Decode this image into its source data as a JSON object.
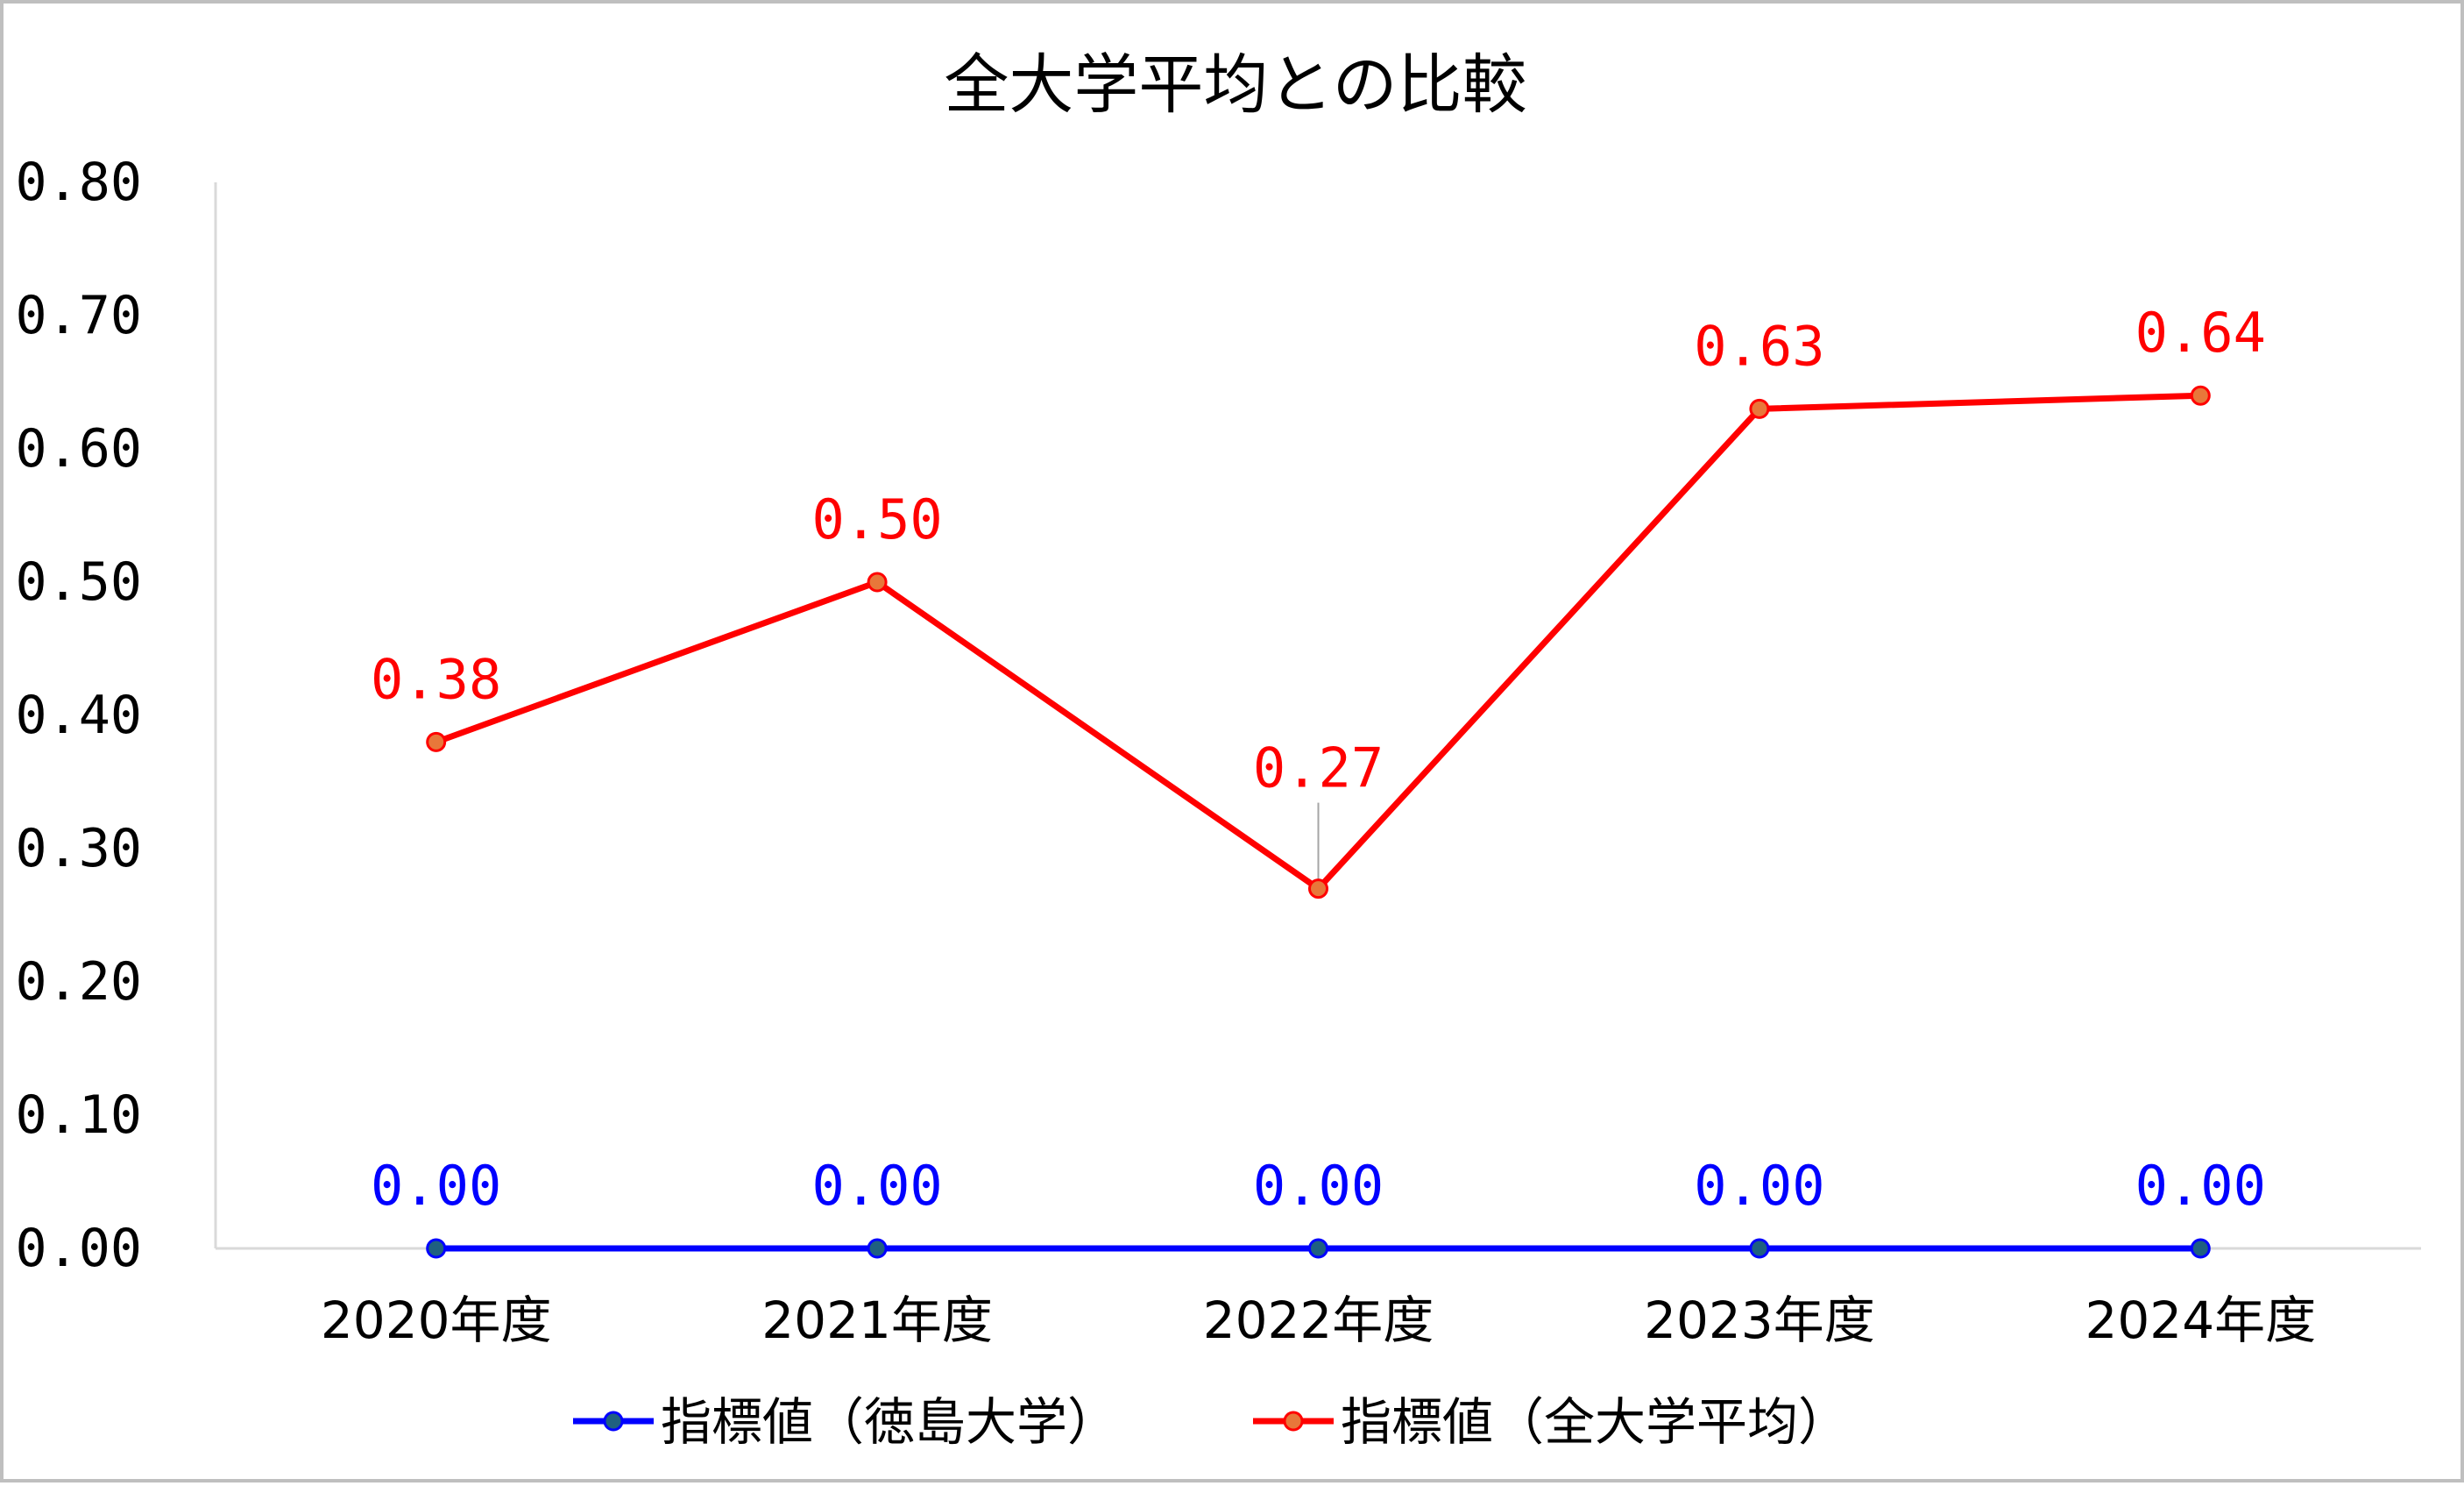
{
  "chart_data": {
    "type": "line",
    "title": "全大学平均との比較",
    "xlabel": "",
    "ylabel": "",
    "categories": [
      "2020年度",
      "2021年度",
      "2022年度",
      "2023年度",
      "2024年度"
    ],
    "series": [
      {
        "name": "指標値（徳島大学）",
        "values": [
          0.0,
          0.0,
          0.0,
          0.0,
          0.0
        ],
        "labels": [
          "0.00",
          "0.00",
          "0.00",
          "0.00",
          "0.00"
        ],
        "line_color": "#0000ff",
        "marker_fill": "#1f6080",
        "marker_stroke": "#0000ff",
        "label_color": "#0000ff"
      },
      {
        "name": "指標値（全大学平均）",
        "values": [
          0.38,
          0.5,
          0.27,
          0.63,
          0.64
        ],
        "labels": [
          "0.38",
          "0.50",
          "0.27",
          "0.63",
          "0.64"
        ],
        "line_color": "#ff0000",
        "marker_fill": "#e8773a",
        "marker_stroke": "#ff0000",
        "label_color": "#ff0000"
      }
    ],
    "ylim": [
      0,
      0.8
    ],
    "yticks": [
      "0.00",
      "0.10",
      "0.20",
      "0.30",
      "0.40",
      "0.50",
      "0.60",
      "0.70",
      "0.80"
    ],
    "grid": false,
    "legend_position": "bottom"
  },
  "colors": {
    "axis": "#d9d9d9",
    "frame": "#bfbfbf",
    "leader_line": "#a6a6a6"
  }
}
